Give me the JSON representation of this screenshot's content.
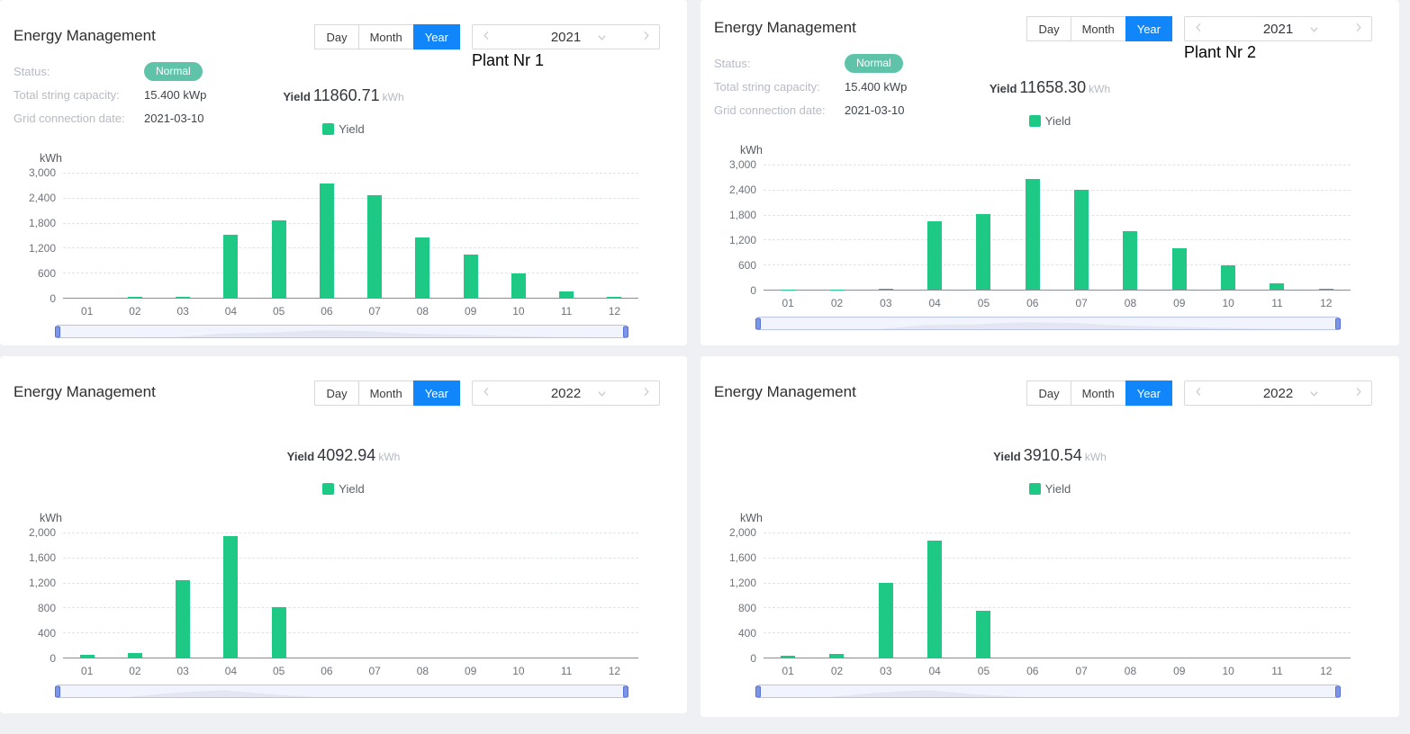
{
  "colors": {
    "accent_blue": "#1086fa",
    "bar_green": "#1dc985",
    "badge_teal": "#5ec3a8",
    "page_background": "#eef0f3",
    "card_background": "#ffffff"
  },
  "panels": [
    {
      "title": "Energy Management",
      "tabs": [
        "Day",
        "Month",
        "Year"
      ],
      "active_tab": "Year",
      "year": "2021",
      "plant_label": "Plant Nr 1",
      "info": {
        "rows": [
          {
            "label": "Status:",
            "value": "Normal"
          },
          {
            "label": "Total string capacity:",
            "value": "15.400 kWp"
          },
          {
            "label": "Grid connection date:",
            "value": "2021-03-10"
          }
        ]
      },
      "yield": {
        "label": "Yield",
        "value": "11860.71",
        "unit": "kWh"
      },
      "legend": "Yield"
    },
    {
      "title": "Energy Management",
      "tabs": [
        "Day",
        "Month",
        "Year"
      ],
      "active_tab": "Year",
      "year": "2021",
      "plant_label": "Plant Nr 2",
      "info": {
        "rows": [
          {
            "label": "Status:",
            "value": "Normal"
          },
          {
            "label": "Total string capacity:",
            "value": "15.400 kWp"
          },
          {
            "label": "Grid connection date:",
            "value": "2021-03-10"
          }
        ]
      },
      "yield": {
        "label": "Yield",
        "value": "11658.30",
        "unit": "kWh"
      },
      "legend": "Yield"
    },
    {
      "title": "Energy Management",
      "tabs": [
        "Day",
        "Month",
        "Year"
      ],
      "active_tab": "Year",
      "year": "2022",
      "yield": {
        "label": "Yield",
        "value": "4092.94",
        "unit": "kWh"
      },
      "legend": "Yield"
    },
    {
      "title": "Energy Management",
      "tabs": [
        "Day",
        "Month",
        "Year"
      ],
      "active_tab": "Year",
      "year": "2022",
      "yield": {
        "label": "Yield",
        "value": "3910.54",
        "unit": "kWh"
      },
      "legend": "Yield"
    }
  ],
  "chart_data": [
    {
      "type": "bar",
      "series_name": "Yield",
      "categories": [
        "01",
        "02",
        "03",
        "04",
        "05",
        "06",
        "07",
        "08",
        "09",
        "10",
        "11",
        "12"
      ],
      "values": [
        8,
        12,
        30,
        1510,
        1860,
        2740,
        2460,
        1440,
        1045,
        585,
        150,
        21
      ],
      "xlabel": "",
      "ylabel": "kWh",
      "ylim": [
        0,
        3000
      ],
      "yticks": [
        "0",
        "600",
        "1,200",
        "1,800",
        "2,400",
        "3,000"
      ],
      "grid": true,
      "legend_position": "top",
      "bar_color": "#1dc985"
    },
    {
      "type": "bar",
      "series_name": "Yield",
      "categories": [
        "01",
        "02",
        "03",
        "04",
        "05",
        "06",
        "07",
        "08",
        "09",
        "10",
        "11",
        "12"
      ],
      "values": [
        5,
        8,
        30,
        1630,
        1805,
        2650,
        2390,
        1394,
        1000,
        576,
        145,
        25
      ],
      "xlabel": "",
      "ylabel": "kWh",
      "ylim": [
        0,
        3000
      ],
      "yticks": [
        "0",
        "600",
        "1,200",
        "1,800",
        "2,400",
        "3,000"
      ],
      "grid": true,
      "legend_position": "top",
      "bar_color": "#1dc985"
    },
    {
      "type": "bar",
      "series_name": "Yield",
      "categories": [
        "01",
        "02",
        "03",
        "04",
        "05",
        "06",
        "07",
        "08",
        "09",
        "10",
        "11",
        "12"
      ],
      "values": [
        42,
        70,
        1235,
        1945,
        801,
        0,
        0,
        0,
        0,
        0,
        0,
        0
      ],
      "xlabel": "",
      "ylabel": "kWh",
      "ylim": [
        0,
        2000
      ],
      "yticks": [
        "0",
        "400",
        "800",
        "1,200",
        "1,600",
        "2,000"
      ],
      "grid": true,
      "legend_position": "top",
      "bar_color": "#1dc985"
    },
    {
      "type": "bar",
      "series_name": "Yield",
      "categories": [
        "01",
        "02",
        "03",
        "04",
        "05",
        "06",
        "07",
        "08",
        "09",
        "10",
        "11",
        "12"
      ],
      "values": [
        30,
        60,
        1200,
        1868,
        752,
        0,
        0,
        0,
        0,
        0,
        0,
        0
      ],
      "xlabel": "",
      "ylabel": "kWh",
      "ylim": [
        0,
        2000
      ],
      "yticks": [
        "0",
        "400",
        "800",
        "1,200",
        "1,600",
        "2,000"
      ],
      "grid": true,
      "legend_position": "top",
      "bar_color": "#1dc985"
    }
  ]
}
